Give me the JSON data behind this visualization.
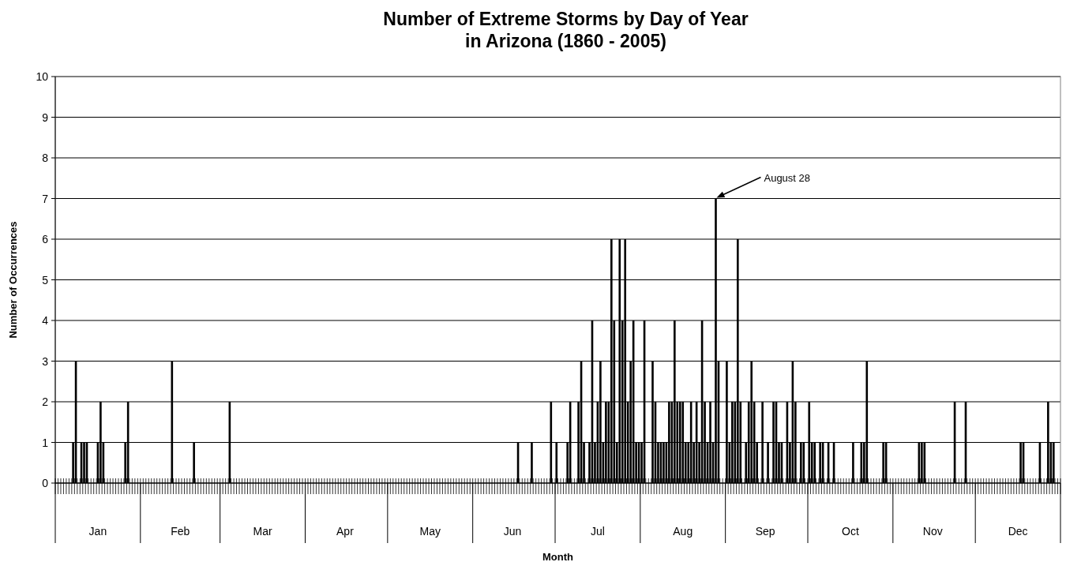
{
  "chart_data": {
    "type": "bar",
    "title": "Number of Extreme Storms by Day of Year",
    "subtitle": "in Arizona (1860 - 2005)",
    "xlabel": "Month",
    "ylabel": "Number of Occurrences",
    "x": [
      "--01-01",
      "--01-02",
      "--01-03",
      "--01-04",
      "--01-05",
      "--01-06",
      "--01-07",
      "--01-08",
      "--01-09",
      "--01-10",
      "--01-11",
      "--01-12",
      "--01-13",
      "--01-14",
      "--01-15",
      "--01-16",
      "--01-17",
      "--01-18",
      "--01-19",
      "--01-20",
      "--01-21",
      "--01-22",
      "--01-23",
      "--01-24",
      "--01-25",
      "--01-26",
      "--01-27",
      "--01-28",
      "--01-29",
      "--01-30",
      "--01-31",
      "--02-01",
      "--02-02",
      "--02-03",
      "--02-04",
      "--02-05",
      "--02-06",
      "--02-07",
      "--02-08",
      "--02-09",
      "--02-10",
      "--02-11",
      "--02-12",
      "--02-13",
      "--02-14",
      "--02-15",
      "--02-16",
      "--02-17",
      "--02-18",
      "--02-19",
      "--02-20",
      "--02-21",
      "--02-22",
      "--02-23",
      "--02-24",
      "--02-25",
      "--02-26",
      "--02-27",
      "--02-28",
      "--02-29",
      "--03-01",
      "--03-02",
      "--03-03",
      "--03-04",
      "--03-05",
      "--03-06",
      "--03-07",
      "--03-08",
      "--03-09",
      "--03-10",
      "--03-11",
      "--03-12",
      "--03-13",
      "--03-14",
      "--03-15",
      "--03-16",
      "--03-17",
      "--03-18",
      "--03-19",
      "--03-20",
      "--03-21",
      "--03-22",
      "--03-23",
      "--03-24",
      "--03-25",
      "--03-26",
      "--03-27",
      "--03-28",
      "--03-29",
      "--03-30",
      "--03-31",
      "--04-01",
      "--04-02",
      "--04-03",
      "--04-04",
      "--04-05",
      "--04-06",
      "--04-07",
      "--04-08",
      "--04-09",
      "--04-10",
      "--04-11",
      "--04-12",
      "--04-13",
      "--04-14",
      "--04-15",
      "--04-16",
      "--04-17",
      "--04-18",
      "--04-19",
      "--04-20",
      "--04-21",
      "--04-22",
      "--04-23",
      "--04-24",
      "--04-25",
      "--04-26",
      "--04-27",
      "--04-28",
      "--04-29",
      "--04-30",
      "--05-01",
      "--05-02",
      "--05-03",
      "--05-04",
      "--05-05",
      "--05-06",
      "--05-07",
      "--05-08",
      "--05-09",
      "--05-10",
      "--05-11",
      "--05-12",
      "--05-13",
      "--05-14",
      "--05-15",
      "--05-16",
      "--05-17",
      "--05-18",
      "--05-19",
      "--05-20",
      "--05-21",
      "--05-22",
      "--05-23",
      "--05-24",
      "--05-25",
      "--05-26",
      "--05-27",
      "--05-28",
      "--05-29",
      "--05-30",
      "--05-31",
      "--06-01",
      "--06-02",
      "--06-03",
      "--06-04",
      "--06-05",
      "--06-06",
      "--06-07",
      "--06-08",
      "--06-09",
      "--06-10",
      "--06-11",
      "--06-12",
      "--06-13",
      "--06-14",
      "--06-15",
      "--06-16",
      "--06-17",
      "--06-18",
      "--06-19",
      "--06-20",
      "--06-21",
      "--06-22",
      "--06-23",
      "--06-24",
      "--06-25",
      "--06-26",
      "--06-27",
      "--06-28",
      "--06-29",
      "--06-30",
      "--07-01",
      "--07-02",
      "--07-03",
      "--07-04",
      "--07-05",
      "--07-06",
      "--07-07",
      "--07-08",
      "--07-09",
      "--07-10",
      "--07-11",
      "--07-12",
      "--07-13",
      "--07-14",
      "--07-15",
      "--07-16",
      "--07-17",
      "--07-18",
      "--07-19",
      "--07-20",
      "--07-21",
      "--07-22",
      "--07-23",
      "--07-24",
      "--07-25",
      "--07-26",
      "--07-27",
      "--07-28",
      "--07-29",
      "--07-30",
      "--07-31",
      "--08-01",
      "--08-02",
      "--08-03",
      "--08-04",
      "--08-05",
      "--08-06",
      "--08-07",
      "--08-08",
      "--08-09",
      "--08-10",
      "--08-11",
      "--08-12",
      "--08-13",
      "--08-14",
      "--08-15",
      "--08-16",
      "--08-17",
      "--08-18",
      "--08-19",
      "--08-20",
      "--08-21",
      "--08-22",
      "--08-23",
      "--08-24",
      "--08-25",
      "--08-26",
      "--08-27",
      "--08-28",
      "--08-29",
      "--08-30",
      "--08-31",
      "--09-01",
      "--09-02",
      "--09-03",
      "--09-04",
      "--09-05",
      "--09-06",
      "--09-07",
      "--09-08",
      "--09-09",
      "--09-10",
      "--09-11",
      "--09-12",
      "--09-13",
      "--09-14",
      "--09-15",
      "--09-16",
      "--09-17",
      "--09-18",
      "--09-19",
      "--09-20",
      "--09-21",
      "--09-22",
      "--09-23",
      "--09-24",
      "--09-25",
      "--09-26",
      "--09-27",
      "--09-28",
      "--09-29",
      "--09-30",
      "--10-01",
      "--10-02",
      "--10-03",
      "--10-04",
      "--10-05",
      "--10-06",
      "--10-07",
      "--10-08",
      "--10-09",
      "--10-10",
      "--10-11",
      "--10-12",
      "--10-13",
      "--10-14",
      "--10-15",
      "--10-16",
      "--10-17",
      "--10-18",
      "--10-19",
      "--10-20",
      "--10-21",
      "--10-22",
      "--10-23",
      "--10-24",
      "--10-25",
      "--10-26",
      "--10-27",
      "--10-28",
      "--10-29",
      "--10-30",
      "--10-31",
      "--11-01",
      "--11-02",
      "--11-03",
      "--11-04",
      "--11-05",
      "--11-06",
      "--11-07",
      "--11-08",
      "--11-09",
      "--11-10",
      "--11-11",
      "--11-12",
      "--11-13",
      "--11-14",
      "--11-15",
      "--11-16",
      "--11-17",
      "--11-18",
      "--11-19",
      "--11-20",
      "--11-21",
      "--11-22",
      "--11-23",
      "--11-24",
      "--11-25",
      "--11-26",
      "--11-27",
      "--11-28",
      "--11-29",
      "--11-30",
      "--12-01",
      "--12-02",
      "--12-03",
      "--12-04",
      "--12-05",
      "--12-06",
      "--12-07",
      "--12-08",
      "--12-09",
      "--12-10",
      "--12-11",
      "--12-12",
      "--12-13",
      "--12-14",
      "--12-15",
      "--12-16",
      "--12-17",
      "--12-18",
      "--12-19",
      "--12-20",
      "--12-21",
      "--12-22",
      "--12-23",
      "--12-24",
      "--12-25",
      "--12-26",
      "--12-27",
      "--12-28",
      "--12-29",
      "--12-30",
      "--12-31"
    ],
    "values": [
      0,
      0,
      0,
      0,
      0,
      0,
      1,
      3,
      0,
      1,
      1,
      1,
      0,
      0,
      0,
      1,
      2,
      1,
      0,
      0,
      0,
      0,
      0,
      0,
      0,
      1,
      2,
      0,
      0,
      0,
      0,
      0,
      0,
      0,
      0,
      0,
      0,
      0,
      0,
      0,
      0,
      0,
      3,
      0,
      0,
      0,
      0,
      0,
      0,
      0,
      1,
      0,
      0,
      0,
      0,
      0,
      0,
      0,
      0,
      0,
      0,
      0,
      0,
      2,
      0,
      0,
      0,
      0,
      0,
      0,
      0,
      0,
      0,
      0,
      0,
      0,
      0,
      0,
      0,
      0,
      0,
      0,
      0,
      0,
      0,
      0,
      0,
      0,
      0,
      0,
      0,
      0,
      0,
      0,
      0,
      0,
      0,
      0,
      0,
      0,
      0,
      0,
      0,
      0,
      0,
      0,
      0,
      0,
      0,
      0,
      0,
      0,
      0,
      0,
      0,
      0,
      0,
      0,
      0,
      0,
      0,
      0,
      0,
      0,
      0,
      0,
      0,
      0,
      0,
      0,
      0,
      0,
      0,
      0,
      0,
      0,
      0,
      0,
      0,
      0,
      0,
      0,
      0,
      0,
      0,
      0,
      0,
      0,
      0,
      0,
      0,
      0,
      0,
      0,
      0,
      0,
      0,
      0,
      0,
      0,
      0,
      0,
      0,
      0,
      0,
      0,
      0,
      0,
      1,
      0,
      0,
      0,
      0,
      1,
      0,
      0,
      0,
      0,
      0,
      0,
      2,
      0,
      1,
      0,
      0,
      0,
      1,
      2,
      0,
      0,
      2,
      3,
      1,
      0,
      1,
      4,
      1,
      2,
      3,
      1,
      2,
      2,
      6,
      4,
      1,
      6,
      4,
      6,
      2,
      3,
      4,
      1,
      1,
      1,
      4,
      0,
      0,
      3,
      2,
      1,
      1,
      1,
      1,
      2,
      2,
      4,
      2,
      2,
      2,
      1,
      1,
      2,
      1,
      2,
      1,
      4,
      2,
      1,
      2,
      1,
      7,
      3,
      0,
      0,
      3,
      1,
      2,
      2,
      6,
      2,
      0,
      1,
      2,
      3,
      2,
      1,
      0,
      2,
      0,
      1,
      0,
      2,
      2,
      1,
      1,
      0,
      2,
      1,
      3,
      2,
      0,
      1,
      1,
      0,
      2,
      1,
      1,
      0,
      1,
      1,
      0,
      1,
      0,
      1,
      0,
      0,
      0,
      0,
      0,
      0,
      1,
      0,
      0,
      1,
      1,
      3,
      0,
      0,
      0,
      0,
      0,
      1,
      1,
      0,
      0,
      0,
      0,
      0,
      0,
      0,
      0,
      0,
      0,
      0,
      1,
      1,
      1,
      0,
      0,
      0,
      0,
      0,
      0,
      0,
      0,
      0,
      0,
      2,
      0,
      0,
      0,
      2,
      0,
      0,
      0,
      0,
      0,
      0,
      0,
      0,
      0,
      0,
      0,
      0,
      0,
      0,
      0,
      0,
      0,
      0,
      0,
      1,
      1,
      0,
      0,
      0,
      0,
      0,
      1,
      0,
      0,
      2,
      1,
      1,
      0,
      0
    ],
    "color": "#000000",
    "ylim": [
      0,
      10
    ],
    "yticks": [
      0,
      1,
      2,
      3,
      4,
      5,
      6,
      7,
      8,
      9,
      10
    ],
    "grid": "y",
    "xlim": [
      "--01-01",
      "--12-31"
    ],
    "xticks": [
      {
        "value": "--01-16",
        "label": "Jan"
      },
      {
        "value": "--02-15",
        "label": "Feb"
      },
      {
        "value": "--03-16",
        "label": "Mar"
      },
      {
        "value": "--04-15",
        "label": "Apr"
      },
      {
        "value": "--05-16",
        "label": "May"
      },
      {
        "value": "--06-15",
        "label": "Jun"
      },
      {
        "value": "--07-16",
        "label": "Jul"
      },
      {
        "value": "--08-16",
        "label": "Aug"
      },
      {
        "value": "--09-15",
        "label": "Sep"
      },
      {
        "value": "--10-16",
        "label": "Oct"
      },
      {
        "value": "--11-15",
        "label": "Nov"
      },
      {
        "value": "--12-16",
        "label": "Dec"
      }
    ],
    "annotations": [
      {
        "text": "August 28",
        "x": "--08-28",
        "y": 7
      }
    ]
  }
}
